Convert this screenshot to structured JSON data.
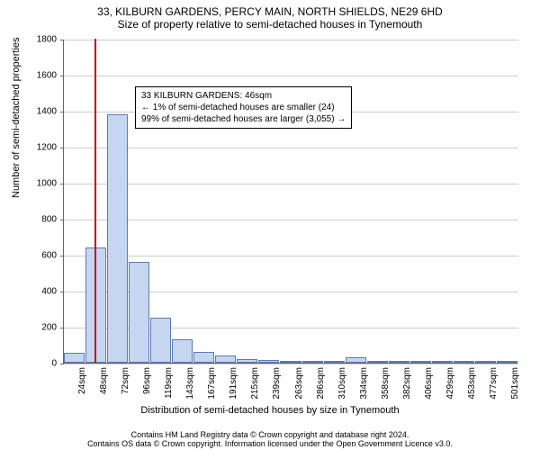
{
  "title": {
    "line1": "33, KILBURN GARDENS, PERCY MAIN, NORTH SHIELDS, NE29 6HD",
    "line2": "Size of property relative to semi-detached houses in Tynemouth"
  },
  "annotation": {
    "line1": "33 KILBURN GARDENS: 46sqm",
    "line2": "← 1% of semi-detached houses are smaller (24)",
    "line3": "99% of semi-detached houses are larger (3,055) →"
  },
  "y_axis": {
    "label": "Number of semi-detached properties",
    "ticks": [
      0,
      200,
      400,
      600,
      800,
      1000,
      1200,
      1400,
      1600,
      1800
    ],
    "max": 1800
  },
  "x_axis": {
    "label": "Distribution of semi-detached houses by size in Tynemouth",
    "tick_labels": [
      "24sqm",
      "48sqm",
      "72sqm",
      "96sqm",
      "119sqm",
      "143sqm",
      "167sqm",
      "191sqm",
      "215sqm",
      "239sqm",
      "263sqm",
      "286sqm",
      "310sqm",
      "334sqm",
      "358sqm",
      "382sqm",
      "406sqm",
      "429sqm",
      "453sqm",
      "477sqm",
      "501sqm"
    ]
  },
  "histogram": {
    "bin_count": 21,
    "values": [
      55,
      640,
      1380,
      560,
      250,
      130,
      60,
      40,
      20,
      15,
      12,
      10,
      5,
      30,
      2,
      3,
      2,
      0,
      0,
      2,
      2
    ],
    "bar_fill": "#c7d6f0",
    "bar_stroke": "#5a7bb5"
  },
  "marker": {
    "value_sqm": 46,
    "color": "#cc0000"
  },
  "grid_color": "#cccccc",
  "attribution": {
    "line1": "Contains HM Land Registry data © Crown copyright and database right 2024.",
    "line2": "Contains OS data © Crown copyright. Information licensed under the Open Government Licence v3.0."
  }
}
